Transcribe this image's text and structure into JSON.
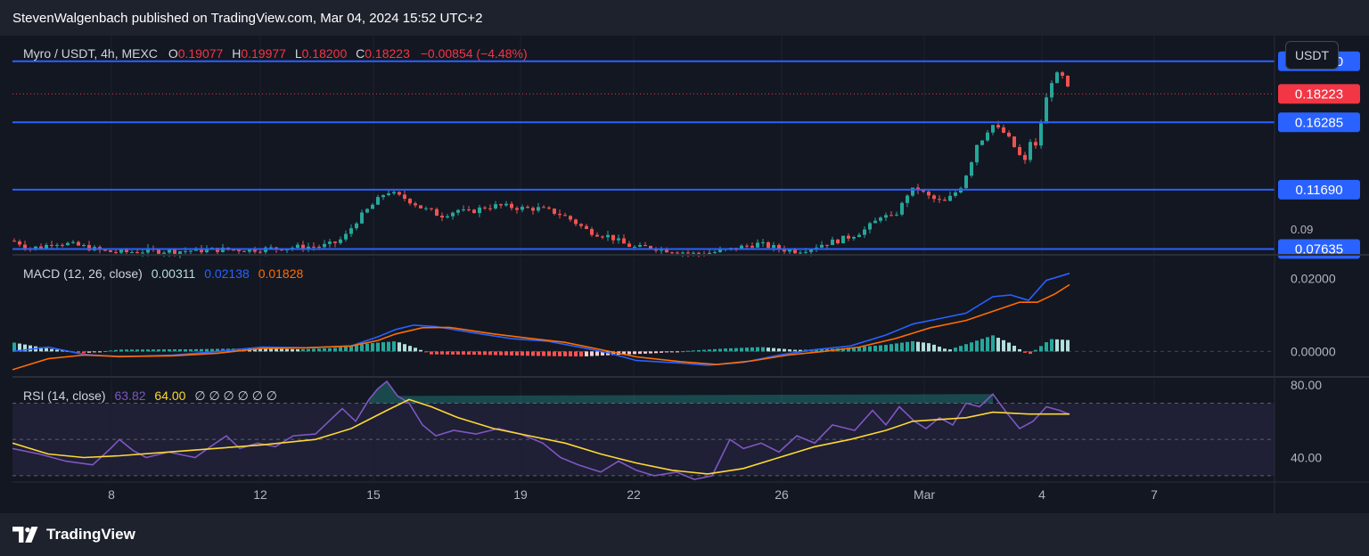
{
  "publisher_line": "StevenWalgenbach published on TradingView.com, Mar 04, 2024 15:52 UTC+2",
  "brand": {
    "name": "TradingView",
    "icon": "tradingview-logo-icon"
  },
  "currency_button": "USDT",
  "legend": {
    "symbol": "Myro / USDT, 4h, MEXC",
    "o_label": "O",
    "o_value": "0.19077",
    "h_label": "H",
    "h_value": "0.19977",
    "l_label": "L",
    "l_value": "0.18200",
    "c_label": "C",
    "c_value": "0.18223",
    "change": "−0.00854 (−4.48%)"
  },
  "macd_legend": {
    "label": "MACD (12, 26, close)",
    "hist": "0.00311",
    "macd": "0.02138",
    "signal": "0.01828"
  },
  "rsi_legend": {
    "label": "RSI (14, close)",
    "rsi": "63.82",
    "ma": "64.00",
    "extras": "∅ ∅ ∅ ∅ ∅ ∅"
  },
  "colors": {
    "up": "#26a69a",
    "down": "#ef5350",
    "level_line": "#2962ff",
    "price_badge": "#f23645",
    "macd_line": "#2962ff",
    "signal_line": "#ff6d00",
    "rsi_line": "#7e57c2",
    "rsi_ma": "#fdd835",
    "hist_up_strong": "#26a69a",
    "hist_up_weak": "#b2dfdb",
    "hist_down_strong": "#ff5252",
    "hist_down_weak": "#ffcdd2"
  },
  "chart_data": [
    {
      "type": "candlestick",
      "title": "Myro / USDT, 4h, MEXC",
      "x_ticks": [
        "8",
        "12",
        "15",
        "19",
        "22",
        "26",
        "Mar",
        "4",
        "7"
      ],
      "y_visible_range": [
        0.073,
        0.222
      ],
      "horizontal_levels": [
        0.2045,
        0.16285,
        0.1169,
        0.07635
      ],
      "axis_labels_partial": [
        "0.11690",
        "0.09"
      ],
      "last_price": 0.18223,
      "path": [
        [
          0,
          0.082
        ],
        [
          10,
          0.08
        ],
        [
          18,
          0.077
        ],
        [
          35,
          0.078
        ],
        [
          45,
          0.081
        ],
        [
          60,
          0.08
        ],
        [
          80,
          0.078
        ],
        [
          100,
          0.075
        ],
        [
          120,
          0.074
        ],
        [
          150,
          0.075
        ],
        [
          190,
          0.075
        ],
        [
          230,
          0.076
        ],
        [
          270,
          0.076
        ],
        [
          300,
          0.077
        ],
        [
          330,
          0.078
        ],
        [
          345,
          0.078
        ],
        [
          360,
          0.08
        ],
        [
          372,
          0.084
        ],
        [
          385,
          0.095
        ],
        [
          398,
          0.103
        ],
        [
          410,
          0.11
        ],
        [
          420,
          0.116
        ],
        [
          430,
          0.113
        ],
        [
          440,
          0.111
        ],
        [
          450,
          0.108
        ],
        [
          460,
          0.104
        ],
        [
          470,
          0.102
        ],
        [
          480,
          0.099
        ],
        [
          490,
          0.101
        ],
        [
          500,
          0.103
        ],
        [
          510,
          0.101
        ],
        [
          520,
          0.103
        ],
        [
          530,
          0.105
        ],
        [
          545,
          0.106
        ],
        [
          560,
          0.105
        ],
        [
          575,
          0.104
        ],
        [
          590,
          0.104
        ],
        [
          605,
          0.102
        ],
        [
          615,
          0.1
        ],
        [
          625,
          0.097
        ],
        [
          635,
          0.093
        ],
        [
          645,
          0.089
        ],
        [
          655,
          0.087
        ],
        [
          670,
          0.085
        ],
        [
          685,
          0.08
        ],
        [
          700,
          0.077
        ],
        [
          715,
          0.078
        ],
        [
          730,
          0.076
        ],
        [
          745,
          0.075
        ],
        [
          765,
          0.073
        ],
        [
          785,
          0.074
        ],
        [
          805,
          0.076
        ],
        [
          820,
          0.078
        ],
        [
          835,
          0.08
        ],
        [
          850,
          0.078
        ],
        [
          865,
          0.076
        ],
        [
          880,
          0.075
        ],
        [
          895,
          0.077
        ],
        [
          910,
          0.08
        ],
        [
          925,
          0.082
        ],
        [
          940,
          0.085
        ],
        [
          955,
          0.089
        ],
        [
          968,
          0.095
        ],
        [
          975,
          0.1
        ],
        [
          985,
          0.097
        ],
        [
          995,
          0.103
        ],
        [
          1005,
          0.115
        ],
        [
          1015,
          0.118
        ],
        [
          1025,
          0.113
        ],
        [
          1035,
          0.11
        ],
        [
          1045,
          0.108
        ],
        [
          1055,
          0.113
        ],
        [
          1065,
          0.12
        ],
        [
          1075,
          0.135
        ],
        [
          1082,
          0.148
        ],
        [
          1090,
          0.153
        ],
        [
          1098,
          0.162
        ],
        [
          1106,
          0.158
        ],
        [
          1114,
          0.155
        ],
        [
          1122,
          0.148
        ],
        [
          1130,
          0.14
        ],
        [
          1136,
          0.136
        ],
        [
          1142,
          0.15
        ],
        [
          1148,
          0.146
        ],
        [
          1156,
          0.168
        ],
        [
          1164,
          0.19
        ],
        [
          1172,
          0.195
        ],
        [
          1180,
          0.193
        ],
        [
          1186,
          0.182
        ]
      ]
    },
    {
      "type": "bar+line",
      "title": "MACD (12, 26, close)",
      "y_ticks": [
        "0.02000",
        "0.00000"
      ],
      "y_range": [
        -0.0065,
        0.026
      ],
      "macd": [
        [
          0,
          0.0
        ],
        [
          40,
          0.0012
        ],
        [
          80,
          -0.0008
        ],
        [
          120,
          -0.0015
        ],
        [
          180,
          -0.001
        ],
        [
          230,
          0.0
        ],
        [
          280,
          0.0012
        ],
        [
          330,
          0.001
        ],
        [
          380,
          0.0015
        ],
        [
          410,
          0.004
        ],
        [
          430,
          0.006
        ],
        [
          450,
          0.0072
        ],
        [
          475,
          0.0068
        ],
        [
          520,
          0.005
        ],
        [
          560,
          0.0035
        ],
        [
          600,
          0.0028
        ],
        [
          640,
          0.001
        ],
        [
          670,
          -0.0005
        ],
        [
          700,
          -0.0025
        ],
        [
          750,
          -0.0032
        ],
        [
          780,
          -0.0038
        ],
        [
          820,
          -0.003
        ],
        [
          860,
          -0.001
        ],
        [
          900,
          0.0005
        ],
        [
          940,
          0.0015
        ],
        [
          980,
          0.0045
        ],
        [
          1010,
          0.0075
        ],
        [
          1040,
          0.009
        ],
        [
          1070,
          0.0105
        ],
        [
          1100,
          0.015
        ],
        [
          1120,
          0.0155
        ],
        [
          1140,
          0.014
        ],
        [
          1160,
          0.0195
        ],
        [
          1186,
          0.0214
        ]
      ],
      "signal": [
        [
          0,
          -0.005
        ],
        [
          40,
          -0.002
        ],
        [
          80,
          -0.001
        ],
        [
          120,
          -0.0014
        ],
        [
          180,
          -0.0012
        ],
        [
          230,
          -0.0005
        ],
        [
          280,
          0.0008
        ],
        [
          330,
          0.001
        ],
        [
          380,
          0.0015
        ],
        [
          410,
          0.003
        ],
        [
          430,
          0.0048
        ],
        [
          460,
          0.0065
        ],
        [
          490,
          0.0066
        ],
        [
          540,
          0.0048
        ],
        [
          580,
          0.0036
        ],
        [
          620,
          0.0025
        ],
        [
          660,
          0.0005
        ],
        [
          700,
          -0.0015
        ],
        [
          750,
          -0.0028
        ],
        [
          790,
          -0.0036
        ],
        [
          830,
          -0.0026
        ],
        [
          870,
          -0.001
        ],
        [
          910,
          0.0
        ],
        [
          950,
          0.0012
        ],
        [
          990,
          0.0035
        ],
        [
          1030,
          0.0065
        ],
        [
          1070,
          0.0085
        ],
        [
          1100,
          0.011
        ],
        [
          1130,
          0.0135
        ],
        [
          1150,
          0.0135
        ],
        [
          1170,
          0.0158
        ],
        [
          1186,
          0.0183
        ]
      ],
      "histogram": [
        [
          0,
          0.0025
        ],
        [
          40,
          0.0008
        ],
        [
          80,
          -0.0005
        ],
        [
          120,
          0.0005
        ],
        [
          200,
          0.0006
        ],
        [
          260,
          0.0008
        ],
        [
          320,
          0.0006
        ],
        [
          360,
          0.0009
        ],
        [
          400,
          0.0022
        ],
        [
          430,
          0.0028
        ],
        [
          450,
          0.0012
        ],
        [
          470,
          -0.0008
        ],
        [
          520,
          -0.0009
        ],
        [
          580,
          -0.0012
        ],
        [
          640,
          -0.0014
        ],
        [
          680,
          -0.0009
        ],
        [
          720,
          -0.0005
        ],
        [
          760,
          0.0002
        ],
        [
          800,
          0.0008
        ],
        [
          840,
          0.0012
        ],
        [
          880,
          0.0004
        ],
        [
          920,
          0.0007
        ],
        [
          950,
          0.0012
        ],
        [
          980,
          0.0018
        ],
        [
          1010,
          0.0028
        ],
        [
          1030,
          0.0022
        ],
        [
          1050,
          0.0004
        ],
        [
          1080,
          0.0028
        ],
        [
          1100,
          0.0044
        ],
        [
          1120,
          0.0022
        ],
        [
          1140,
          -0.001
        ],
        [
          1165,
          0.0034
        ],
        [
          1186,
          0.0031
        ]
      ]
    },
    {
      "type": "line",
      "title": "RSI (14, close)",
      "y_ticks": [
        "80.00",
        "40.00"
      ],
      "y_range": [
        27,
        83
      ],
      "bands": [
        70,
        30
      ],
      "rsi": [
        [
          0,
          45
        ],
        [
          30,
          42
        ],
        [
          60,
          38
        ],
        [
          90,
          36
        ],
        [
          110,
          45
        ],
        [
          120,
          50
        ],
        [
          135,
          44
        ],
        [
          150,
          40
        ],
        [
          175,
          43
        ],
        [
          205,
          40
        ],
        [
          225,
          47
        ],
        [
          240,
          52
        ],
        [
          255,
          45
        ],
        [
          275,
          48
        ],
        [
          295,
          46
        ],
        [
          315,
          52
        ],
        [
          340,
          53
        ],
        [
          355,
          60
        ],
        [
          370,
          67
        ],
        [
          385,
          60
        ],
        [
          400,
          72
        ],
        [
          410,
          78
        ],
        [
          420,
          82
        ],
        [
          432,
          74
        ],
        [
          445,
          70
        ],
        [
          460,
          58
        ],
        [
          475,
          52
        ],
        [
          495,
          55
        ],
        [
          520,
          53
        ],
        [
          545,
          56
        ],
        [
          570,
          53
        ],
        [
          595,
          48
        ],
        [
          615,
          40
        ],
        [
          635,
          36
        ],
        [
          660,
          32
        ],
        [
          680,
          38
        ],
        [
          700,
          33
        ],
        [
          720,
          30
        ],
        [
          745,
          32
        ],
        [
          765,
          28
        ],
        [
          785,
          30
        ],
        [
          805,
          50
        ],
        [
          820,
          45
        ],
        [
          840,
          48
        ],
        [
          860,
          43
        ],
        [
          880,
          52
        ],
        [
          900,
          48
        ],
        [
          920,
          58
        ],
        [
          945,
          55
        ],
        [
          965,
          66
        ],
        [
          980,
          58
        ],
        [
          995,
          68
        ],
        [
          1012,
          60
        ],
        [
          1025,
          56
        ],
        [
          1040,
          62
        ],
        [
          1055,
          58
        ],
        [
          1070,
          70
        ],
        [
          1085,
          68
        ],
        [
          1100,
          75
        ],
        [
          1115,
          65
        ],
        [
          1130,
          56
        ],
        [
          1145,
          60
        ],
        [
          1160,
          68
        ],
        [
          1175,
          66
        ],
        [
          1186,
          63.8
        ]
      ],
      "rsi_ma": [
        [
          0,
          48
        ],
        [
          40,
          42
        ],
        [
          80,
          40
        ],
        [
          120,
          41
        ],
        [
          200,
          44
        ],
        [
          280,
          47
        ],
        [
          340,
          50
        ],
        [
          380,
          56
        ],
        [
          420,
          66
        ],
        [
          445,
          72
        ],
        [
          470,
          68
        ],
        [
          500,
          62
        ],
        [
          540,
          56
        ],
        [
          580,
          52
        ],
        [
          620,
          48
        ],
        [
          660,
          42
        ],
        [
          700,
          37
        ],
        [
          740,
          33
        ],
        [
          780,
          31
        ],
        [
          820,
          34
        ],
        [
          860,
          40
        ],
        [
          900,
          46
        ],
        [
          940,
          50
        ],
        [
          980,
          55
        ],
        [
          1010,
          60
        ],
        [
          1040,
          61
        ],
        [
          1070,
          62
        ],
        [
          1100,
          65
        ],
        [
          1140,
          64
        ],
        [
          1186,
          64
        ]
      ]
    }
  ]
}
